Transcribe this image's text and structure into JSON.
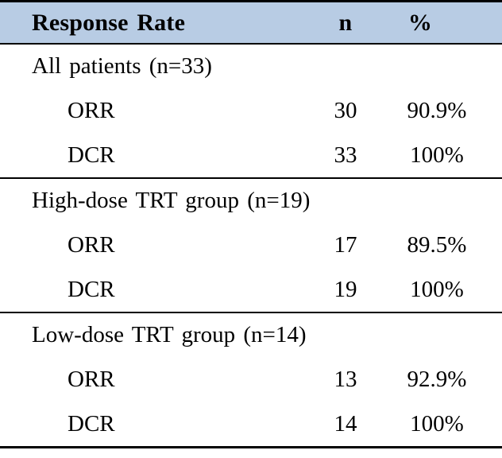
{
  "table": {
    "header_bg": "#b8cce4",
    "border_color": "#000000",
    "header": {
      "col_label": "Response Rate",
      "col_n": "n",
      "col_pct": "%"
    },
    "sections": [
      {
        "label": "All patients (n=33)",
        "rows": [
          {
            "metric": "ORR",
            "n": "30",
            "pct": "90.9%"
          },
          {
            "metric": "DCR",
            "n": "33",
            "pct": "100%"
          }
        ]
      },
      {
        "label": "High-dose TRT group (n=19)",
        "rows": [
          {
            "metric": "ORR",
            "n": "17",
            "pct": "89.5%"
          },
          {
            "metric": "DCR",
            "n": "19",
            "pct": "100%"
          }
        ]
      },
      {
        "label": "Low-dose TRT group (n=14)",
        "rows": [
          {
            "metric": "ORR",
            "n": "13",
            "pct": "92.9%"
          },
          {
            "metric": "DCR",
            "n": "14",
            "pct": "100%"
          }
        ]
      }
    ]
  }
}
